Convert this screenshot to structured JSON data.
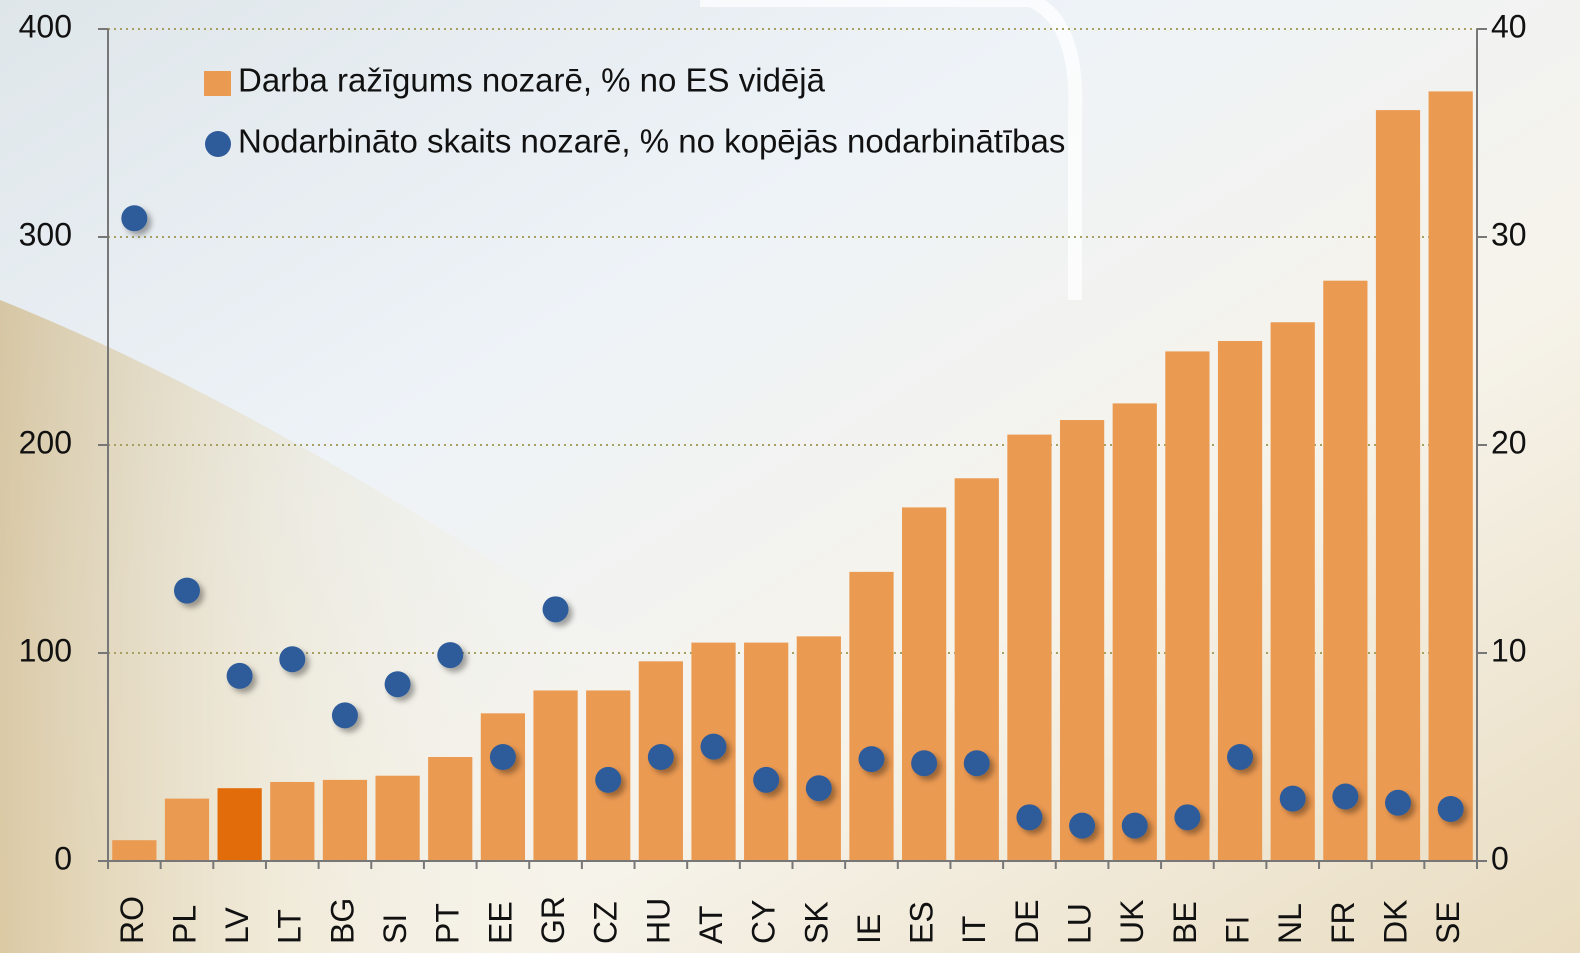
{
  "chart_data": {
    "type": "bar",
    "categories": [
      "RO",
      "PL",
      "LV",
      "LT",
      "BG",
      "SI",
      "PT",
      "EE",
      "GR",
      "CZ",
      "HU",
      "AT",
      "CY",
      "SK",
      "IE",
      "ES",
      "IT",
      "DE",
      "LU",
      "UK",
      "BE",
      "FI",
      "NL",
      "FR",
      "DK",
      "SE"
    ],
    "series": [
      {
        "name": "Darba ražīgums nozarē, % no ES vidējā",
        "type": "bar",
        "color": "#eb9a52",
        "colors": [
          "#eb9a52",
          "#eb9a52",
          "#e36c0a",
          "#eb9a52",
          "#eb9a52",
          "#eb9a52",
          "#eb9a52",
          "#eb9a52",
          "#eb9a52",
          "#eb9a52",
          "#eb9a52",
          "#eb9a52",
          "#eb9a52",
          "#eb9a52",
          "#eb9a52",
          "#eb9a52",
          "#eb9a52",
          "#eb9a52",
          "#eb9a52",
          "#eb9a52",
          "#eb9a52",
          "#eb9a52",
          "#eb9a52",
          "#eb9a52",
          "#eb9a52",
          "#eb9a52"
        ],
        "values": [
          10,
          30,
          35,
          38,
          39,
          41,
          50,
          71,
          82,
          82,
          96,
          105,
          105,
          108,
          139,
          170,
          184,
          205,
          212,
          220,
          245,
          250,
          259,
          279,
          361,
          370
        ]
      },
      {
        "name": "Nodarbināto skaits nozarē, % no kopējās nodarbinātības",
        "type": "scatter",
        "axis": "y2",
        "color": "#2e5c9a",
        "values": [
          30.9,
          13.0,
          8.9,
          9.7,
          7.0,
          8.5,
          9.9,
          5.0,
          12.1,
          3.9,
          5.0,
          5.5,
          3.9,
          3.5,
          4.9,
          4.7,
          4.7,
          2.1,
          1.7,
          1.7,
          2.1,
          5.0,
          3.0,
          3.1,
          2.8,
          2.5
        ]
      }
    ],
    "ylim": [
      0,
      400
    ],
    "yticks": [
      0,
      100,
      200,
      300,
      400
    ],
    "y2lim": [
      0,
      40
    ],
    "y2ticks": [
      0,
      10,
      20,
      30,
      40
    ],
    "grid": true,
    "legend": "top-left"
  }
}
